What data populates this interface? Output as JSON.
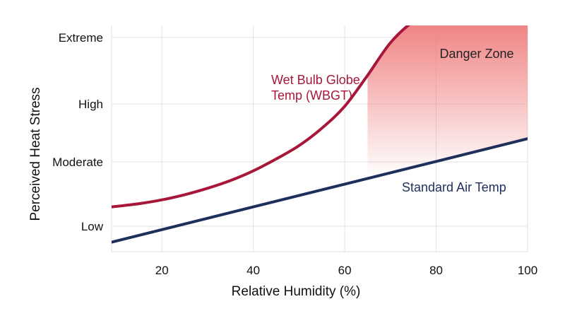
{
  "chart_data": {
    "type": "line",
    "title": "",
    "xlabel": "Relative Humidity (%)",
    "ylabel": "Perceived Heat Stress",
    "xlim": [
      9,
      100
    ],
    "xticks": [
      20,
      40,
      60,
      80,
      100
    ],
    "ylim": [
      0.6,
      4.3
    ],
    "yticks": [
      {
        "value": 1,
        "label": "Low"
      },
      {
        "value": 2,
        "label": "Moderate"
      },
      {
        "value": 3,
        "label": "High"
      },
      {
        "value": 4,
        "label": "Extreme"
      }
    ],
    "grid": true,
    "series": [
      {
        "name": "Wet Bulb Globe Temp (WBGT)",
        "color": "#a8173a",
        "x": [
          9,
          15,
          20,
          25,
          30,
          35,
          40,
          45,
          50,
          55,
          60,
          65,
          70,
          75,
          80
        ],
        "y": [
          1.3,
          1.35,
          1.41,
          1.49,
          1.59,
          1.71,
          1.86,
          2.05,
          2.28,
          2.58,
          2.96,
          3.43,
          3.92,
          4.4,
          4.7
        ]
      },
      {
        "name": "Standard Air Temp",
        "color": "#1e2f5c",
        "x": [
          9,
          100
        ],
        "y": [
          0.75,
          2.4
        ]
      }
    ],
    "shaded_region": {
      "label": "Danger Zone",
      "color": "#ef7878",
      "x_start": 65,
      "x_end": 100
    }
  }
}
